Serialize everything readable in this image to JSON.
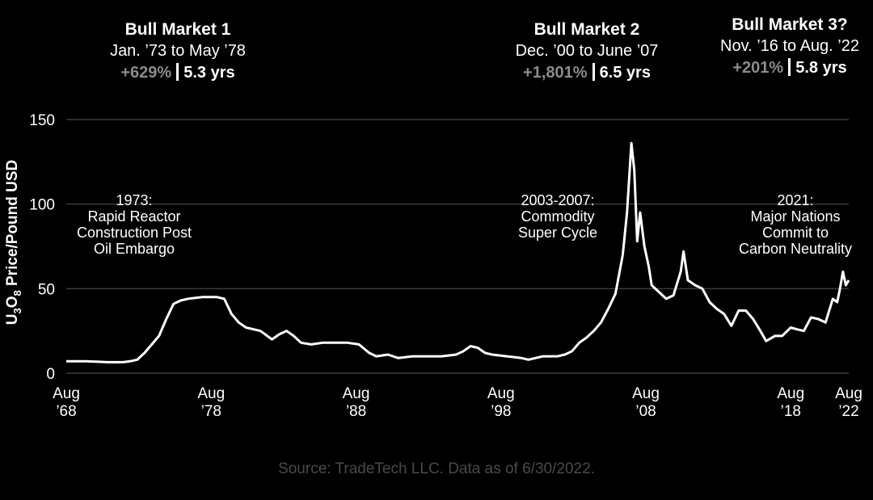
{
  "chart_data": {
    "type": "line",
    "ylabel": "U3O8 Price/Pound USD",
    "ylim": [
      0,
      150
    ],
    "y_ticks": [
      "0",
      "50",
      "100",
      "150"
    ],
    "x_ticks": [
      {
        "line1": "Aug",
        "line2": "’68"
      },
      {
        "line1": "Aug",
        "line2": "’78"
      },
      {
        "line1": "Aug",
        "line2": "’88"
      },
      {
        "line1": "Aug",
        "line2": "’98"
      },
      {
        "line1": "Aug",
        "line2": "’08"
      },
      {
        "line1": "Aug",
        "line2": "’18"
      },
      {
        "line1": "Aug",
        "line2": "’22"
      }
    ],
    "x_tick_years": [
      1968.6,
      1978.6,
      1988.6,
      1998.6,
      2008.6,
      2018.6,
      2022.6
    ],
    "xlim": [
      1968.6,
      2022.6
    ],
    "series": [
      {
        "name": "U3O8 price",
        "points": [
          [
            1968.6,
            7
          ],
          [
            1970.0,
            7
          ],
          [
            1971.5,
            6.5
          ],
          [
            1972.5,
            6.5
          ],
          [
            1973.0,
            7
          ],
          [
            1973.5,
            8
          ],
          [
            1974.0,
            12
          ],
          [
            1974.5,
            17
          ],
          [
            1975.0,
            22
          ],
          [
            1975.5,
            32
          ],
          [
            1976.0,
            41
          ],
          [
            1976.5,
            43
          ],
          [
            1977.0,
            44
          ],
          [
            1978.0,
            45
          ],
          [
            1979.0,
            45
          ],
          [
            1979.5,
            44
          ],
          [
            1980.0,
            35
          ],
          [
            1980.5,
            30
          ],
          [
            1981.0,
            27
          ],
          [
            1982.0,
            25
          ],
          [
            1982.8,
            20
          ],
          [
            1983.3,
            23
          ],
          [
            1983.8,
            25
          ],
          [
            1984.3,
            22
          ],
          [
            1984.8,
            18
          ],
          [
            1985.5,
            17
          ],
          [
            1986.3,
            18
          ],
          [
            1987.0,
            18
          ],
          [
            1988.0,
            18
          ],
          [
            1988.8,
            17
          ],
          [
            1989.5,
            12
          ],
          [
            1990.0,
            10
          ],
          [
            1990.8,
            11
          ],
          [
            1991.5,
            9
          ],
          [
            1992.5,
            10
          ],
          [
            1993.5,
            10
          ],
          [
            1994.5,
            10
          ],
          [
            1995.5,
            11
          ],
          [
            1996.0,
            13
          ],
          [
            1996.5,
            16
          ],
          [
            1997.0,
            15
          ],
          [
            1997.5,
            12
          ],
          [
            1998.0,
            11
          ],
          [
            1999.0,
            10
          ],
          [
            2000.0,
            9
          ],
          [
            2000.5,
            8
          ],
          [
            2001.0,
            9
          ],
          [
            2001.5,
            10
          ],
          [
            2002.5,
            10
          ],
          [
            2003.0,
            11
          ],
          [
            2003.5,
            13
          ],
          [
            2004.0,
            18
          ],
          [
            2004.5,
            21
          ],
          [
            2005.0,
            25
          ],
          [
            2005.5,
            30
          ],
          [
            2006.0,
            38
          ],
          [
            2006.5,
            47
          ],
          [
            2007.0,
            70
          ],
          [
            2007.3,
            95
          ],
          [
            2007.6,
            136
          ],
          [
            2007.8,
            120
          ],
          [
            2008.0,
            78
          ],
          [
            2008.2,
            95
          ],
          [
            2008.5,
            75
          ],
          [
            2008.8,
            63
          ],
          [
            2009.0,
            52
          ],
          [
            2009.5,
            48
          ],
          [
            2010.0,
            44
          ],
          [
            2010.5,
            46
          ],
          [
            2011.0,
            60
          ],
          [
            2011.2,
            72
          ],
          [
            2011.5,
            55
          ],
          [
            2012.0,
            52
          ],
          [
            2012.5,
            50
          ],
          [
            2013.0,
            42
          ],
          [
            2013.5,
            38
          ],
          [
            2014.0,
            35
          ],
          [
            2014.5,
            28
          ],
          [
            2015.0,
            37
          ],
          [
            2015.5,
            37
          ],
          [
            2016.0,
            32
          ],
          [
            2016.5,
            25
          ],
          [
            2016.9,
            19
          ],
          [
            2017.5,
            22
          ],
          [
            2018.0,
            22
          ],
          [
            2018.6,
            27
          ],
          [
            2019.0,
            26
          ],
          [
            2019.5,
            25
          ],
          [
            2020.0,
            33
          ],
          [
            2020.5,
            32
          ],
          [
            2021.0,
            30
          ],
          [
            2021.5,
            44
          ],
          [
            2021.8,
            42
          ],
          [
            2022.0,
            50
          ],
          [
            2022.2,
            60
          ],
          [
            2022.4,
            52
          ],
          [
            2022.6,
            55
          ]
        ]
      }
    ],
    "annotations": [
      {
        "lines": [
          "1973:",
          "Rapid Reactor",
          "Construction Post",
          "Oil Embargo"
        ]
      },
      {
        "lines": [
          "2003-2007:",
          "Commodity",
          "Super Cycle"
        ]
      },
      {
        "lines": [
          "2021:",
          "Major Nations",
          "Commit to",
          "Carbon Neutrality"
        ]
      }
    ],
    "bull_markets": [
      {
        "title": "Bull Market 1",
        "dates": "Jan. ’73 to May ’78",
        "gain": "+629%",
        "duration": "5.3 yrs"
      },
      {
        "title": "Bull Market 2",
        "dates": "Dec. ’00 to June ’07",
        "gain": "+1,801%",
        "duration": "6.5 yrs"
      },
      {
        "title": "Bull Market 3?",
        "dates": "Nov. ’16 to Aug. ’22",
        "gain": "+201%",
        "duration": "5.8 yrs"
      }
    ],
    "source": "Source: TradeTech LLC. Data as of 6/30/2022.",
    "colors": {
      "background": "#000000",
      "line": "#ffffff",
      "grid": "#3a3a3a",
      "gain": "#8c8c8c",
      "source": "#4a4a4a"
    }
  }
}
